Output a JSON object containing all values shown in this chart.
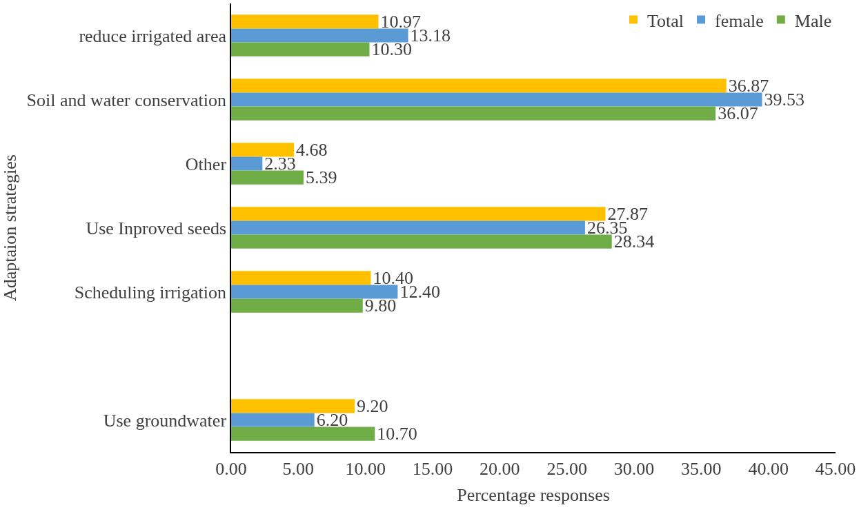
{
  "chart_data": {
    "type": "bar",
    "orientation": "horizontal",
    "xlabel": "Percentage responses",
    "ylabel": "Adaptaion strategies",
    "categories": [
      "reduce irrigated area",
      "Soil and water conservation",
      "Other",
      "Use Inproved seeds",
      "Scheduling irrigation",
      null,
      "Use groundwater"
    ],
    "series": [
      {
        "name": "Total",
        "color": "#ffc000",
        "values": [
          10.97,
          36.87,
          4.68,
          27.87,
          10.4,
          null,
          9.2
        ],
        "value_labels": [
          "10.97",
          "36.87",
          "4.68",
          "27.87",
          "10.40",
          null,
          "9.20"
        ]
      },
      {
        "name": "female",
        "color": "#5b9bd5",
        "values": [
          13.18,
          39.53,
          2.33,
          26.35,
          12.4,
          null,
          6.2
        ],
        "value_labels": [
          "13.18",
          "39.53",
          "2.33",
          "26.35",
          "12.40",
          null,
          "6.20"
        ]
      },
      {
        "name": "Male",
        "color": "#70ad47",
        "values": [
          10.3,
          36.07,
          5.39,
          28.34,
          9.8,
          null,
          10.7
        ],
        "value_labels": [
          "10.30",
          "36.07",
          "5.39",
          "28.34",
          "9.80",
          null,
          "10.70"
        ]
      }
    ],
    "xlim": [
      0,
      45
    ],
    "xticks": [
      {
        "value": 0,
        "label": "0.00"
      },
      {
        "value": 5,
        "label": "5.00"
      },
      {
        "value": 10,
        "label": "10.00"
      },
      {
        "value": 15,
        "label": "15.00"
      },
      {
        "value": 20,
        "label": "20.00"
      },
      {
        "value": 25,
        "label": "25.00"
      },
      {
        "value": 30,
        "label": "30.00"
      },
      {
        "value": 35,
        "label": "35.00"
      },
      {
        "value": 40,
        "label": "40.00"
      },
      {
        "value": 45,
        "label": "45.00"
      }
    ],
    "legend": "top right"
  }
}
